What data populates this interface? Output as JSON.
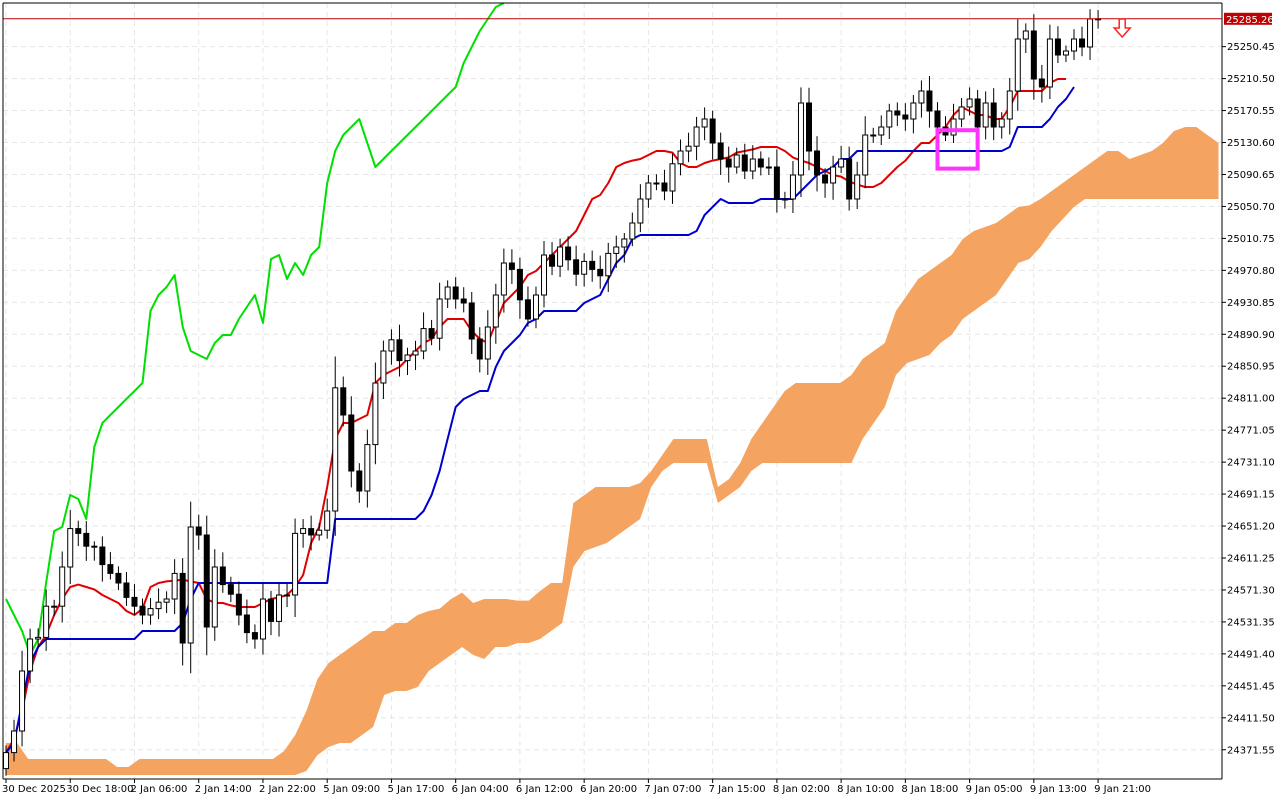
{
  "chart_data": {
    "type": "line",
    "subtype": "candlestick-ichimoku",
    "title": "",
    "xlabel": "",
    "ylabel": "",
    "ylim": [
      24335,
      25305
    ],
    "grid": true,
    "background": "#ffffff",
    "y_ticks": [
      "25250.45",
      "25210.50",
      "25170.55",
      "25130.60",
      "25090.65",
      "25050.70",
      "25010.75",
      "24970.80",
      "24930.85",
      "24890.90",
      "24850.95",
      "24811.00",
      "24771.05",
      "24731.10",
      "24691.15",
      "24651.20",
      "24611.25",
      "24571.30",
      "24531.35",
      "24491.40",
      "24451.45",
      "24411.50",
      "24371.55"
    ],
    "x_ticks": [
      "30 Dec 2025",
      "30 Dec 18:00",
      "2 Jan 06:00",
      "2 Jan 14:00",
      "2 Jan 22:00",
      "5 Jan 09:00",
      "5 Jan 17:00",
      "6 Jan 04:00",
      "6 Jan 12:00",
      "6 Jan 20:00",
      "7 Jan 07:00",
      "7 Jan 15:00",
      "8 Jan 02:00",
      "8 Jan 10:00",
      "8 Jan 18:00",
      "9 Jan 05:00",
      "9 Jan 13:00",
      "9 Jan 21:00"
    ],
    "x_tick_bar_index": [
      0,
      8,
      16,
      24,
      32,
      40,
      48,
      56,
      64,
      72,
      80,
      88,
      96,
      104,
      112,
      120,
      128,
      136
    ],
    "current_price": {
      "label": "25285.26",
      "value": 25285.26,
      "line_color": "#c00000",
      "label_bg": "#c00000",
      "label_fg": "#ffffff"
    },
    "highlight_box": {
      "bar_from": 116,
      "bar_to": 121,
      "y_from": 25098,
      "y_to": 25146,
      "color": "#ff33ff"
    },
    "sell_arrow": {
      "bar": 139,
      "value": 25270,
      "color": "#ff2222"
    },
    "candles": {
      "up_color": "#ffffff",
      "down_color": "#000000",
      "wick_color": "#000000",
      "closes": [
        24368,
        24395,
        24470,
        24510,
        24512,
        24551,
        24551,
        24600,
        24648,
        24642,
        24626,
        24625,
        24603,
        24592,
        24580,
        24562,
        24551,
        24540,
        24548,
        24556,
        24560,
        24592,
        24505,
        24650,
        24640,
        24525,
        24600,
        24578,
        24566,
        24540,
        24518,
        24510,
        24560,
        24532,
        24565,
        24565,
        24642,
        24648,
        24640,
        24646,
        24670,
        24824,
        24790,
        24720,
        24695,
        24753,
        24830,
        24870,
        24884,
        24858,
        24865,
        24870,
        24898,
        24886,
        24935,
        24950,
        24935,
        24930,
        24885,
        24860,
        24900,
        24940,
        24980,
        24972,
        24934,
        24910,
        24940,
        24990,
        24976,
        25000,
        24984,
        24966,
        24982,
        24972,
        24964,
        24992,
        25000,
        25010,
        25030,
        25060,
        25080,
        25080,
        25070,
        25104,
        25120,
        25126,
        25150,
        25160,
        25130,
        25110,
        25100,
        25115,
        25095,
        25110,
        25100,
        25100,
        25060,
        25060,
        25090,
        25180,
        25120,
        25090,
        25080,
        25100,
        25110,
        25060,
        25090,
        25140,
        25140,
        25150,
        25170,
        25165,
        25160,
        25180,
        25195,
        25170,
        25150,
        25140,
        25160,
        25175,
        25185,
        25150,
        25180,
        25150,
        25160,
        25195,
        25260,
        25270,
        25210,
        25200,
        25260,
        25240,
        25245,
        25260,
        25250,
        25285,
        25285.26
      ]
    },
    "series": [
      {
        "key": "chikou",
        "name": "",
        "color": "#00e000",
        "values": [
          24560,
          24540,
          24520,
          24490,
          24510,
          24580,
          24645,
          24650,
          24690,
          24685,
          24660,
          24750,
          24780,
          24790,
          24800,
          24810,
          24820,
          24830,
          24920,
          24940,
          24950,
          24965,
          24900,
          24870,
          24865,
          24860,
          24880,
          24890,
          24890,
          24910,
          24925,
          24940,
          24905,
          24985,
          24990,
          24960,
          24980,
          24965,
          24990,
          25000,
          25080,
          25120,
          25140,
          25150,
          25160,
          25130,
          25100,
          25110,
          25120,
          25130,
          25140,
          25150,
          25160,
          25170,
          25180,
          25190,
          25200,
          25230,
          25250,
          25270,
          25285,
          25300,
          25320
        ]
      },
      {
        "key": "tenkan",
        "name": "",
        "color": "#e00000",
        "values": [
          24368,
          24385,
          24420,
          24470,
          24500,
          24515,
          24540,
          24560,
          24575,
          24578,
          24575,
          24572,
          24565,
          24560,
          24555,
          24545,
          24540,
          24548,
          24575,
          24580,
          24582,
          24583,
          24584,
          24582,
          24580,
          24560,
          24555,
          24555,
          24552,
          24550,
          24550,
          24550,
          24555,
          24560,
          24562,
          24565,
          24575,
          24590,
          24630,
          24650,
          24700,
          24760,
          24780,
          24780,
          24785,
          24790,
          24830,
          24840,
          24845,
          24850,
          24860,
          24870,
          24880,
          24885,
          24900,
          24910,
          24910,
          24910,
          24895,
          24885,
          24880,
          24905,
          24930,
          24940,
          24950,
          24965,
          24970,
          24980,
          24990,
          25000,
          25010,
          25020,
          25040,
          25060,
          25065,
          25080,
          25100,
          25105,
          25108,
          25110,
          25115,
          25120,
          25120,
          25118,
          25105,
          25100,
          25100,
          25105,
          25108,
          25110,
          25112,
          25118,
          25120,
          25122,
          25125,
          25125,
          25125,
          25120,
          25112,
          25108,
          25105,
          25100,
          25095,
          25090,
          25088,
          25082,
          25078,
          25075,
          25075,
          25080,
          25090,
          25100,
          25108,
          25120,
          25130,
          25130,
          25140,
          25150,
          25165,
          25175,
          25170,
          25165,
          25165,
          25160,
          25160,
          25175,
          25195,
          25195,
          25195,
          25195,
          25205,
          25210,
          25210
        ]
      },
      {
        "key": "kijun",
        "name": "",
        "color": "#0000cc",
        "values": [
          24368,
          24380,
          24430,
          24480,
          24500,
          24510,
          24510,
          24510,
          24510,
          24510,
          24510,
          24510,
          24510,
          24510,
          24510,
          24510,
          24510,
          24520,
          24520,
          24520,
          24520,
          24520,
          24530,
          24560,
          24580,
          24580,
          24580,
          24580,
          24580,
          24580,
          24580,
          24580,
          24580,
          24580,
          24580,
          24580,
          24580,
          24580,
          24580,
          24580,
          24580,
          24660,
          24660,
          24660,
          24660,
          24660,
          24660,
          24660,
          24660,
          24660,
          24660,
          24660,
          24670,
          24690,
          24720,
          24760,
          24800,
          24810,
          24815,
          24820,
          24820,
          24850,
          24870,
          24880,
          24890,
          24905,
          24910,
          24920,
          24920,
          24920,
          24920,
          24920,
          24930,
          24935,
          24940,
          24960,
          24980,
          24990,
          25010,
          25015,
          25015,
          25015,
          25015,
          25015,
          25015,
          25015,
          25020,
          25040,
          25050,
          25060,
          25055,
          25055,
          25055,
          25055,
          25060,
          25060,
          25060,
          25060,
          25060,
          25070,
          25080,
          25090,
          25095,
          25100,
          25110,
          25110,
          25120,
          25120,
          25120,
          25120,
          25120,
          25120,
          25120,
          25120,
          25120,
          25120,
          25120,
          25120,
          25120,
          25120,
          25120,
          25120,
          25120,
          25120,
          25120,
          25125,
          25150,
          25150,
          25150,
          25150,
          25160,
          25175,
          25185,
          25200
        ]
      }
    ],
    "kumo": {
      "color": "#f4a460",
      "top": [
        24380,
        24380,
        24360,
        24360,
        24360,
        24360,
        24360,
        24360,
        24360,
        24360,
        24350,
        24350,
        24360,
        24360,
        24360,
        24360,
        24360,
        24360,
        24360,
        24360,
        24360,
        24360,
        24360,
        24360,
        24360,
        24370,
        24390,
        24420,
        24460,
        24480,
        24490,
        24500,
        24510,
        24520,
        24520,
        24530,
        24530,
        24540,
        24545,
        24548,
        24560,
        24568,
        24555,
        24560,
        24560,
        24560,
        24558,
        24558,
        24570,
        24580,
        24580,
        24680,
        24690,
        24700,
        24700,
        24700,
        24700,
        24705,
        24720,
        24740,
        24760,
        24760,
        24760,
        24760,
        24700,
        24710,
        24730,
        24760,
        24780,
        24800,
        24820,
        24830,
        24830,
        24830,
        24830,
        24830,
        24840,
        24860,
        24870,
        24880,
        24920,
        24940,
        24960,
        24970,
        24980,
        24990,
        25010,
        25020,
        25025,
        25030,
        25040,
        25050,
        25052,
        25060,
        25070,
        25080,
        25090,
        25100,
        25110,
        25120,
        25120,
        25110,
        25115,
        25120,
        25130,
        25145,
        25150,
        25150,
        25140,
        25130
      ],
      "bottom": [
        24340,
        24340,
        24340,
        24340,
        24340,
        24340,
        24340,
        24340,
        24340,
        24340,
        24340,
        24340,
        24340,
        24340,
        24340,
        24340,
        24340,
        24340,
        24340,
        24340,
        24340,
        24340,
        24340,
        24340,
        24340,
        24340,
        24340,
        24345,
        24365,
        24375,
        24380,
        24380,
        24390,
        24400,
        24440,
        24445,
        24445,
        24450,
        24470,
        24480,
        24490,
        24500,
        24490,
        24485,
        24500,
        24500,
        24505,
        24505,
        24510,
        24520,
        24530,
        24600,
        24620,
        24625,
        24630,
        24640,
        24650,
        24660,
        24700,
        24720,
        24730,
        24730,
        24730,
        24730,
        24680,
        24690,
        24700,
        24720,
        24730,
        24730,
        24730,
        24730,
        24730,
        24730,
        24730,
        24730,
        24730,
        24760,
        24780,
        24800,
        24840,
        24855,
        24860,
        24865,
        24880,
        24890,
        24910,
        24920,
        24930,
        24940,
        24960,
        24980,
        24985,
        25000,
        25020,
        25035,
        25050,
        25060,
        25060,
        25060,
        25060,
        25060,
        25060,
        25060,
        25060,
        25060,
        25060,
        25060,
        25060,
        25060
      ],
      "start_bar": 0,
      "end_bar": 151
    }
  }
}
